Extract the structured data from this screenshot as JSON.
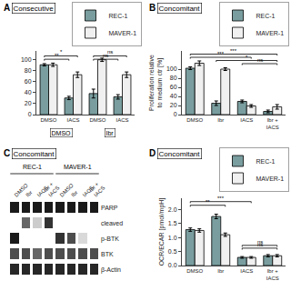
{
  "chart_data": [
    {
      "type": "bar",
      "panel": "A",
      "title": "Consecutive",
      "categories": [
        "DMSO",
        "IACS",
        "DMSO",
        "IACS"
      ],
      "groups": [
        "DMSO",
        "Ibr"
      ],
      "series": [
        {
          "name": "REC-1",
          "color": "#7a9e9f",
          "values": [
            90,
            30,
            38,
            32
          ],
          "errors": [
            2,
            3,
            8,
            4
          ]
        },
        {
          "name": "MAVER-1",
          "color": "#f0f0f0",
          "values": [
            90,
            72,
            99,
            72
          ],
          "errors": [
            3,
            5,
            3,
            5
          ]
        }
      ],
      "ylim": [
        0,
        115
      ],
      "yticks": [
        0,
        20,
        40,
        60,
        80,
        100
      ],
      "grid": false,
      "legend": "top right",
      "annotations": [
        {
          "text": "**",
          "from": [
            0,
            0
          ],
          "to": [
            1,
            0
          ],
          "y": 100
        },
        {
          "text": "*",
          "from": [
            0,
            0
          ],
          "to": [
            1,
            1
          ],
          "y": 106
        },
        {
          "text": "ns",
          "from": [
            2,
            0
          ],
          "to": [
            3,
            0
          ],
          "y": 100
        },
        {
          "text": "ns",
          "from": [
            2,
            0
          ],
          "to": [
            3,
            1
          ],
          "y": 106
        }
      ]
    },
    {
      "type": "bar",
      "panel": "B",
      "title": "Concomitant",
      "categories": [
        "DMSO",
        "Ibr",
        "IACS",
        "Ibr +\nIACS"
      ],
      "series": [
        {
          "name": "REC-1",
          "color": "#7a9e9f",
          "values": [
            102,
            25,
            29,
            7
          ],
          "errors": [
            3,
            5,
            3,
            3
          ]
        },
        {
          "name": "MAVER-1",
          "color": "#f0f0f0",
          "values": [
            113,
            100,
            19,
            17
          ],
          "errors": [
            5,
            3,
            3,
            5
          ]
        }
      ],
      "ylabel": "Proliferation relative\nto medium ctr [%]",
      "ylim": [
        0,
        140
      ],
      "yticks": [
        0,
        20,
        40,
        60,
        80,
        100
      ],
      "grid": false,
      "legend": "top right",
      "annotations": [
        {
          "text": "***",
          "from": [
            0,
            0
          ],
          "to": [
            3,
            1
          ],
          "y": 133
        },
        {
          "text": "***",
          "from": [
            0,
            0
          ],
          "to": [
            2,
            1
          ],
          "y": 126
        },
        {
          "text": "*",
          "from": [
            1,
            0
          ],
          "to": [
            3,
            1
          ],
          "y": 119
        },
        {
          "text": "ns",
          "from": [
            2,
            0
          ],
          "to": [
            3,
            1
          ],
          "y": 112
        }
      ]
    },
    {
      "type": "heatmap",
      "panel": "C",
      "title": "Concomitant",
      "categories": [
        "DMSO",
        "Ibr",
        "IACS",
        "Ibr +\nIACS",
        "DMSO",
        "Ibr",
        "IACS",
        "Ibr +\nIACS"
      ],
      "groups": [
        "REC-1",
        "MAVER-1"
      ],
      "rows": [
        "PARP",
        "cleaved",
        "p-BTK",
        "BTK",
        "β-Actin"
      ],
      "values": [
        [
          0.9,
          0.9,
          0.9,
          0.9,
          0.9,
          0.9,
          0.9,
          0.9
        ],
        [
          0.0,
          0.6,
          0.2,
          0.8,
          0.0,
          0.0,
          0.0,
          0.0
        ],
        [
          0.9,
          0.0,
          0.0,
          0.0,
          0.8,
          0.7,
          0.15,
          0.0
        ],
        [
          0.7,
          0.7,
          0.6,
          0.7,
          0.7,
          0.7,
          0.7,
          0.7
        ],
        [
          0.85,
          0.85,
          0.85,
          0.85,
          0.85,
          0.85,
          0.85,
          0.85
        ]
      ]
    },
    {
      "type": "bar",
      "panel": "D",
      "title": "Concomitant",
      "categories": [
        "DMSO",
        "Ibr",
        "IACS",
        "Ibr +\nIACS"
      ],
      "series": [
        {
          "name": "REC-1",
          "color": "#7a9e9f",
          "values": [
            1.28,
            1.75,
            0.29,
            0.35
          ],
          "errors": [
            0.06,
            0.08,
            0.03,
            0.04
          ]
        },
        {
          "name": "MAVER-1",
          "color": "#f0f0f0",
          "values": [
            1.25,
            1.1,
            0.29,
            0.35
          ],
          "errors": [
            0.06,
            0.06,
            0.03,
            0.04
          ]
        }
      ],
      "ylabel": "OCR/ECAR [pmol/mpH]",
      "ylim": [
        0,
        2.4
      ],
      "yticks": [
        {
          "value": 0,
          "label": "0.0"
        },
        0.5,
        {
          "value": 1,
          "label": "1.0"
        },
        1.5,
        {
          "value": 2,
          "label": "2.0"
        }
      ],
      "grid": false,
      "legend": "top right",
      "annotations": [
        {
          "text": "**",
          "from": [
            0,
            0
          ],
          "to": [
            1,
            1
          ],
          "y": 2.15
        },
        {
          "text": "***",
          "from": [
            0,
            0
          ],
          "to": [
            2,
            1
          ],
          "y": 2.28
        },
        {
          "text": "ns",
          "from": [
            2,
            0
          ],
          "to": [
            3,
            1
          ],
          "y": 0.72
        },
        {
          "text": "ns",
          "from": [
            2,
            0
          ],
          "to": [
            3,
            1
          ],
          "y": 0.62
        }
      ]
    }
  ]
}
